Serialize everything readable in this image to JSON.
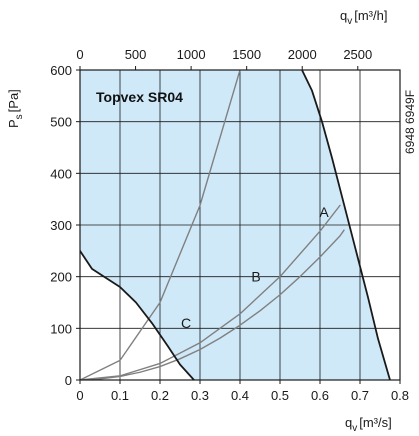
{
  "chart_data": {
    "type": "line",
    "title": "Topvex SR04",
    "figure_code": "6948 6949F",
    "x_bottom": {
      "label_base": "q",
      "label_sub": "v",
      "label_unit": "[m³/s]",
      "range": [
        0,
        0.8
      ],
      "ticks": [
        0,
        0.1,
        0.2,
        0.3,
        0.4,
        0.5,
        0.6,
        0.7,
        0.8
      ]
    },
    "x_top": {
      "label_base": "q",
      "label_sub": "v",
      "label_unit": "[m³/h]",
      "range": [
        0,
        2880
      ],
      "ticks": [
        0,
        500,
        1000,
        1500,
        2000,
        2500
      ]
    },
    "y": {
      "label_base": "P",
      "label_sub": "s",
      "label_unit": "[Pa]",
      "range": [
        0,
        600
      ],
      "ticks": [
        0,
        100,
        200,
        300,
        400,
        500,
        600
      ]
    },
    "grid": true,
    "series": [
      {
        "name": "A",
        "role": "system curve",
        "color": "#808080",
        "x": [
          0,
          0.1,
          0.2,
          0.3,
          0.4,
          0.5,
          0.6,
          0.65
        ],
        "y": [
          0,
          8,
          32,
          72,
          128,
          200,
          288,
          338
        ]
      },
      {
        "name": "B",
        "role": "system curve",
        "color": "#808080",
        "x": [
          0,
          0.1,
          0.2,
          0.3,
          0.4
        ],
        "y": [
          0,
          38,
          150,
          338,
          600
        ]
      },
      {
        "name": "C",
        "role": "system curve",
        "color": "#808080",
        "x": [
          0,
          0.05,
          0.1,
          0.15,
          0.2,
          0.25,
          0.3,
          0.35,
          0.4,
          0.45,
          0.5,
          0.55,
          0.6,
          0.65,
          0.66
        ],
        "y": [
          0,
          2,
          7,
          15,
          26,
          41,
          59,
          81,
          106,
          134,
          165,
          200,
          238,
          279,
          290
        ]
      },
      {
        "name": "",
        "role": "max fan curve",
        "color": "#1a1a1a",
        "x": [
          0.555,
          0.58,
          0.605,
          0.63,
          0.66,
          0.69,
          0.72,
          0.745,
          0.775
        ],
        "y": [
          600,
          560,
          500,
          430,
          340,
          250,
          160,
          80,
          0
        ]
      },
      {
        "name": "",
        "role": "min fan curve",
        "color": "#1a1a1a",
        "x": [
          0,
          0.03,
          0.07,
          0.1,
          0.14,
          0.18,
          0.22,
          0.25,
          0.285
        ],
        "y": [
          250,
          215,
          195,
          180,
          150,
          110,
          65,
          30,
          0
        ]
      }
    ],
    "curve_labels": [
      {
        "text": "A",
        "x": 0.61,
        "y": 325
      },
      {
        "text": "B",
        "x": 0.44,
        "y": 200
      },
      {
        "text": "C",
        "x": 0.265,
        "y": 110
      }
    ],
    "working_area_color": "#cfe9f8"
  }
}
